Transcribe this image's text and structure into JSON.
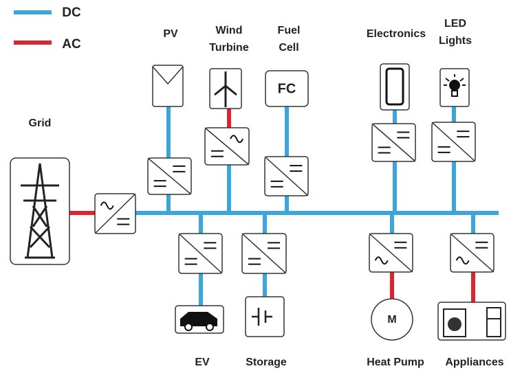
{
  "legend": [
    {
      "label": "DC"
    },
    {
      "label": "AC"
    }
  ],
  "nodes": [
    {
      "lines": [
        "PV"
      ]
    },
    {
      "lines": [
        "Wind",
        "Turbine"
      ]
    },
    {
      "lines": [
        "Fuel",
        "Cell"
      ],
      "icon": "FC"
    },
    {
      "lines": [
        "Electronics"
      ]
    },
    {
      "lines": [
        "LED",
        "Lights"
      ]
    },
    {
      "lines": [
        "Grid"
      ]
    },
    {
      "lines": [
        "EV"
      ]
    },
    {
      "lines": [
        "Storage"
      ]
    },
    {
      "lines": [
        "Heat Pump"
      ],
      "icon": "M"
    },
    {
      "lines": [
        "Appliances"
      ]
    }
  ]
}
